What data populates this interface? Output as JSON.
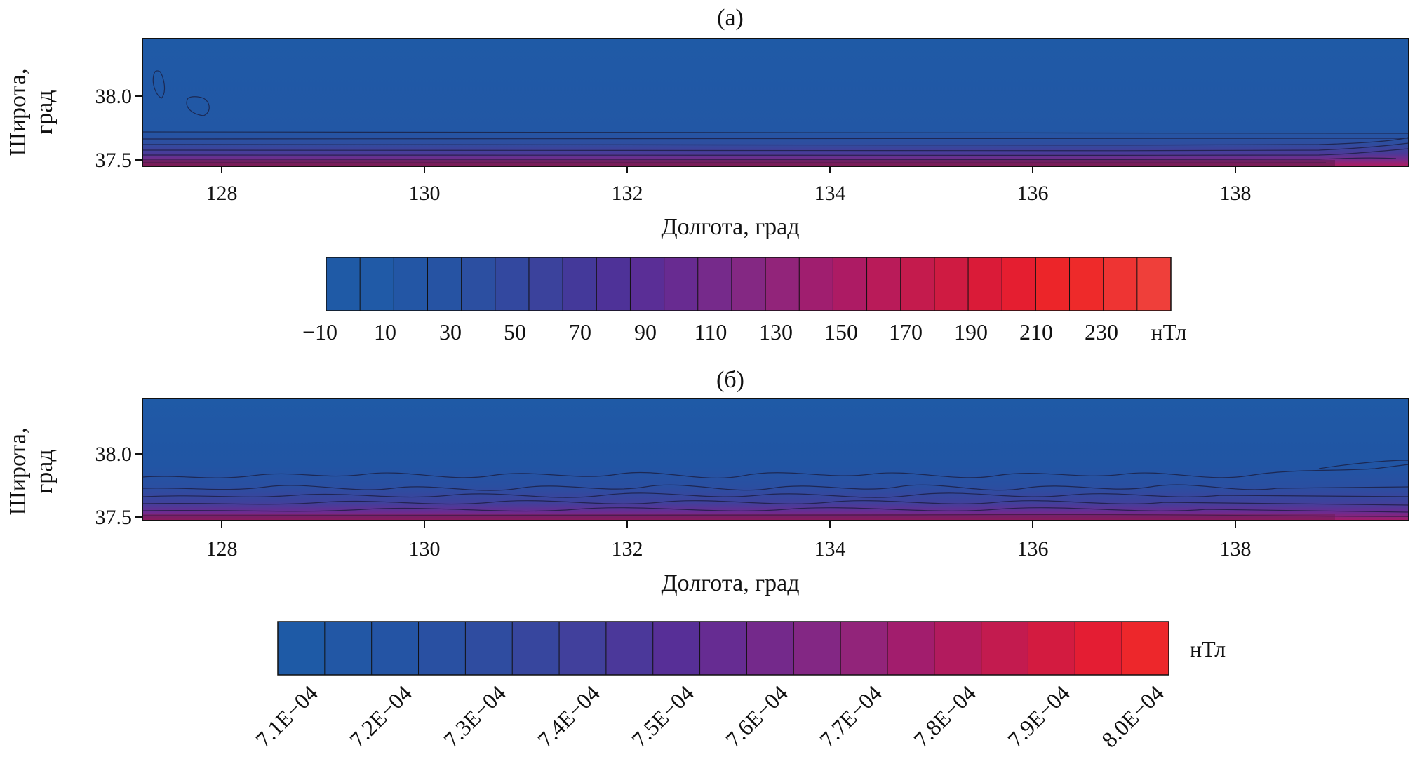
{
  "chart_data": [
    {
      "type": "heatmap",
      "panel_label": "(a)",
      "xlabel": "Долгота, град",
      "ylabel_line1": "Широта,",
      "ylabel_line2": "град",
      "xlim": [
        127.2,
        139.7
      ],
      "ylim": [
        37.45,
        38.45
      ],
      "x_ticks": [
        "128",
        "130",
        "132",
        "134",
        "136",
        "138"
      ],
      "y_ticks": [
        "38.0",
        "37.5"
      ],
      "x_tick_values": [
        128,
        130,
        132,
        134,
        136,
        138
      ],
      "y_tick_values": [
        38.0,
        37.5
      ],
      "grid": false,
      "field": {
        "min": -10,
        "max": 240,
        "peak_location": "southern edge (lat ≈ 37.5)",
        "background_value": 0
      },
      "colorbar": {
        "unit": "нТл",
        "labels": [
          "−10",
          "10",
          "30",
          "50",
          "70",
          "90",
          "110",
          "130",
          "150",
          "170",
          "190",
          "210",
          "230"
        ],
        "colors": [
          "#1f5aa6",
          "#205aa7",
          "#2356a5",
          "#2653a3",
          "#2c4fa1",
          "#33489f",
          "#3b429c",
          "#44399a",
          "#4e3298",
          "#5a2e96",
          "#682b91",
          "#762a8b",
          "#842883",
          "#92247a",
          "#a01e6f",
          "#ad1b64",
          "#b91b59",
          "#c41b4d",
          "#cf1b42",
          "#da1b38",
          "#e51e30",
          "#ec2529",
          "#ee2a2a",
          "#ee3433",
          "#ef3f3a"
        ]
      }
    },
    {
      "type": "heatmap",
      "panel_label": "(б)",
      "xlabel": "Долгота, град",
      "ylabel_line1": "Широта,",
      "ylabel_line2": "град",
      "xlim": [
        127.2,
        139.7
      ],
      "ylim": [
        37.45,
        38.45
      ],
      "x_ticks": [
        "128",
        "130",
        "132",
        "134",
        "136",
        "138"
      ],
      "y_ticks": [
        "38.0",
        "37.5"
      ],
      "x_tick_values": [
        128,
        130,
        132,
        134,
        136,
        138
      ],
      "y_tick_values": [
        38.0,
        37.5
      ],
      "grid": false,
      "field": {
        "min": 0.00071,
        "max": 0.0008,
        "peak_location": "southern edge (lat ≈ 37.5)",
        "background_value": 0.00071
      },
      "colorbar": {
        "unit": "нТл",
        "labels": [
          "7.1E−04",
          "7.2E−04",
          "7.3E−04",
          "7.4E−04",
          "7.5E−04",
          "7.6E−04",
          "7.7E−04",
          "7.8E−04",
          "7.9E−04",
          "8.0E−04"
        ],
        "colors": [
          "#1e5aa6",
          "#2257a5",
          "#2454a4",
          "#2950a2",
          "#2f4ca0",
          "#37469e",
          "#41409c",
          "#4b389a",
          "#572f97",
          "#662c92",
          "#74298b",
          "#832784",
          "#92247a",
          "#a21d6d",
          "#b21b5e",
          "#c31b4f",
          "#d31b40",
          "#e41d33",
          "#ed272b"
        ]
      }
    }
  ]
}
